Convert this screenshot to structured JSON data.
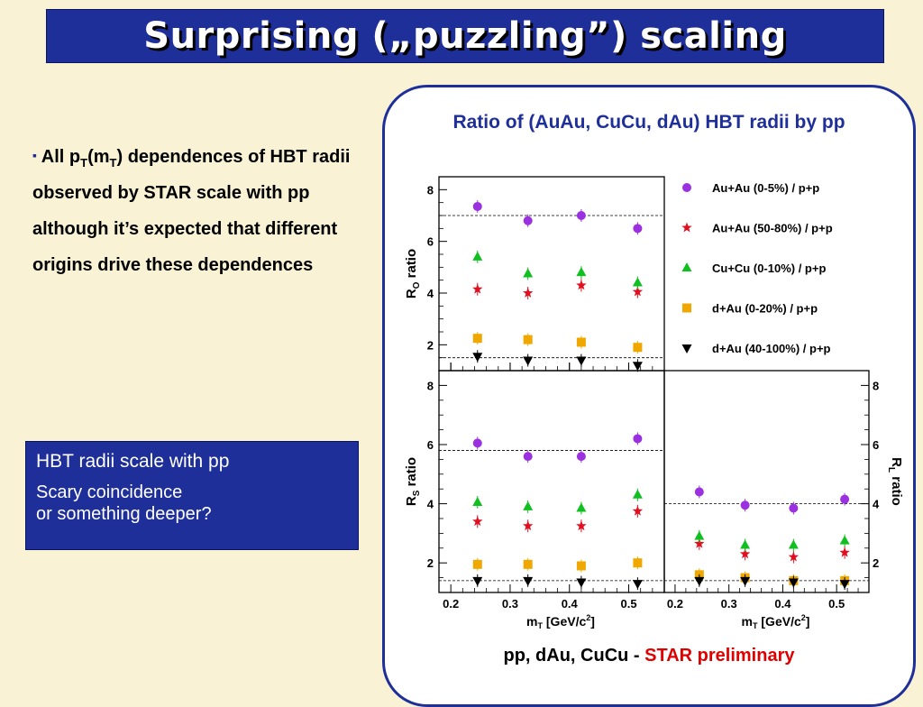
{
  "slide": {
    "title": "Surprising („puzzling”) scaling",
    "bullet": {
      "prefix": "All p",
      "sub1": "T",
      "mid": "(m",
      "sub2": "T",
      "rest": ") dependences of HBT radii observed by STAR scale with pp although it’s expected that different origins drive these dependences"
    },
    "box": {
      "line1": "HBT radii scale with pp",
      "line2": "Scary coincidence",
      "line3": "or something deeper?"
    },
    "plot_title": "Ratio of (AuAu, CuCu, dAu) HBT radii by pp",
    "footer": {
      "prefix": "pp, dAu, CuCu - ",
      "highlight": "STAR preliminary"
    }
  },
  "chart_data": {
    "type": "scatter",
    "x_label": "m",
    "x_label_sub": "T",
    "x_label_unit_pre": " [GeV/c",
    "x_label_sup": "2",
    "x_label_unit_post": "]",
    "xlim": [
      0.18,
      0.56
    ],
    "ylim": [
      1.0,
      8.5
    ],
    "x_ticks": [
      "0.2",
      "0.3",
      "0.4",
      "0.5"
    ],
    "y_ticks": [
      "2",
      "4",
      "6",
      "8"
    ],
    "x": [
      0.245,
      0.33,
      0.42,
      0.515
    ],
    "series": [
      {
        "name": "Au+Au (0-5%) / p+p",
        "color": "#9b30e0",
        "marker": "circle"
      },
      {
        "name": "Au+Au (50-80%) / p+p",
        "color": "#e01020",
        "marker": "star"
      },
      {
        "name": "Cu+Cu (0-10%) / p+p",
        "color": "#10c020",
        "marker": "triangle-up"
      },
      {
        "name": "d+Au (0-20%) / p+p",
        "color": "#f0a800",
        "marker": "square"
      },
      {
        "name": "d+Au (40-100%) / p+p",
        "color": "#000000",
        "marker": "triangle-down"
      }
    ],
    "panels": [
      {
        "id": "ro",
        "ylabel": "R",
        "ylabel_sub": "O",
        "ylabel_post": " ratio",
        "reference_lines": [
          7.0,
          1.5
        ],
        "values": [
          [
            7.35,
            6.8,
            7.0,
            6.5
          ],
          [
            4.15,
            4.0,
            4.3,
            4.05
          ],
          [
            5.4,
            4.75,
            4.8,
            4.4
          ],
          [
            2.25,
            2.2,
            2.1,
            1.9
          ],
          [
            1.55,
            1.4,
            1.4,
            1.2
          ]
        ]
      },
      {
        "id": "rs",
        "ylabel": "R",
        "ylabel_sub": "S",
        "ylabel_post": " ratio",
        "reference_lines": [
          5.8,
          1.4
        ],
        "values": [
          [
            6.05,
            5.6,
            5.6,
            6.2
          ],
          [
            3.4,
            3.25,
            3.25,
            3.75
          ],
          [
            4.05,
            3.9,
            3.85,
            4.3
          ],
          [
            1.95,
            1.95,
            1.9,
            2.0
          ],
          [
            1.4,
            1.4,
            1.35,
            1.3
          ]
        ]
      },
      {
        "id": "rl",
        "ylabel": "R",
        "ylabel_sub": "L",
        "ylabel_post": " ratio",
        "reference_lines": [
          4.0,
          1.4
        ],
        "values": [
          [
            4.4,
            3.95,
            3.85,
            4.15
          ],
          [
            2.65,
            2.3,
            2.2,
            2.35
          ],
          [
            2.9,
            2.6,
            2.6,
            2.75
          ],
          [
            1.6,
            1.5,
            1.4,
            1.4
          ],
          [
            1.4,
            1.4,
            1.35,
            1.3
          ]
        ]
      }
    ]
  }
}
